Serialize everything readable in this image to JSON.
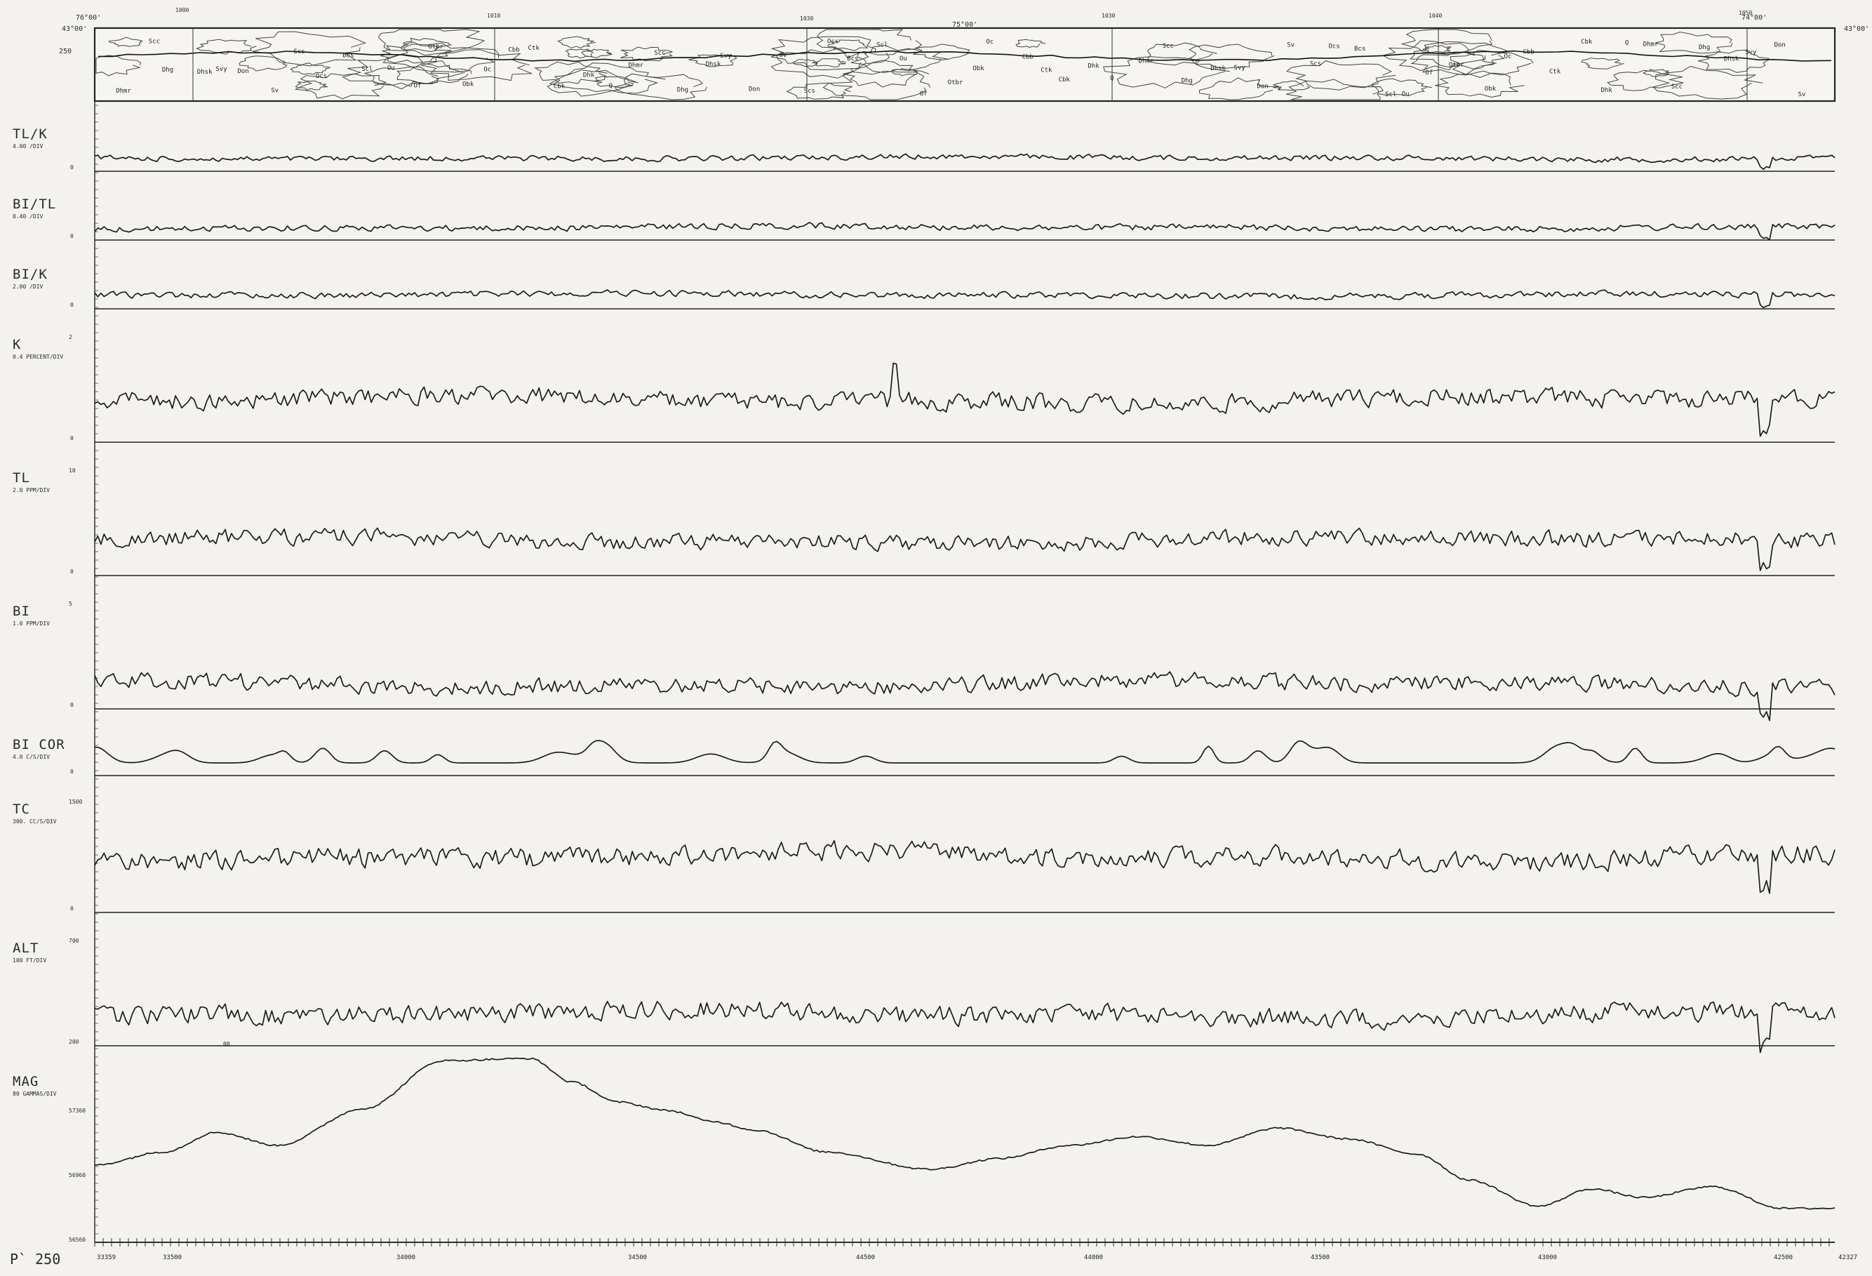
{
  "page_number": "P` 250",
  "header_map": {
    "corners": {
      "top_left_lon": "76°00'",
      "top_left_lat": "43°00'",
      "mid_lon": "75°00'",
      "top_right_lon": "74°00'",
      "top_right_lat": "43°00'",
      "left_alt": "250"
    },
    "fiducials": [
      "1000",
      "1010",
      "1030",
      "1030",
      "1040",
      "1050"
    ],
    "unit_labels": [
      "Dhmr",
      "Scc",
      "Dhg",
      "Dhsk",
      "Svy",
      "Don",
      "Sv",
      "Scs",
      "Ocs",
      "Bcs",
      "Scl",
      "Ou",
      "Of",
      "Otbr",
      "Obk",
      "Oc",
      "Cbb",
      "Ctk",
      "Cbk",
      "Dhk",
      "Q"
    ]
  },
  "chart_data": [
    {
      "type": "line",
      "name": "TL/K",
      "scale": "4.00 /DIV",
      "ticks": {
        "low": "0"
      },
      "profile": "noise",
      "mean": 0.3,
      "amplitude": 0.04
    },
    {
      "type": "line",
      "name": "BI/TL",
      "scale": "0.40 /DIV",
      "ticks": {
        "low": "0"
      },
      "profile": "noise",
      "mean": 0.3,
      "amplitude": 0.06
    },
    {
      "type": "line",
      "name": "BI/K",
      "scale": "2.00 /DIV",
      "ticks": {
        "low": "0"
      },
      "profile": "noise",
      "mean": 0.25,
      "amplitude": 0.05
    },
    {
      "type": "line",
      "name": "K",
      "scale": "0.4 PERCENT/DIV",
      "ticks": {
        "high": "2",
        "low": "0"
      },
      "profile": "noise",
      "mean": 1.45,
      "amplitude": 0.12
    },
    {
      "type": "line",
      "name": "TL",
      "scale": "2.0 PPM/DIV",
      "ticks": {
        "high": "10",
        "low": "0"
      },
      "profile": "noise",
      "mean": 5.5,
      "amplitude": 0.6
    },
    {
      "type": "line",
      "name": "BI",
      "scale": "1.0 PPM/DIV",
      "ticks": {
        "high": "5",
        "low": "0"
      },
      "profile": "noise",
      "mean": 2.4,
      "amplitude": 0.3
    },
    {
      "type": "line",
      "name": "BI COR",
      "scale": "4.0 C/S/DIV",
      "ticks": {
        "low": "0"
      },
      "profile": "bumps",
      "mean": 0.0,
      "amplitude": 2.0
    },
    {
      "type": "line",
      "name": "TC",
      "scale": "300. CC/S/DIV",
      "ticks": {
        "high": "1500",
        "low": "0"
      },
      "profile": "noise",
      "mean": 1000,
      "amplitude": 60
    },
    {
      "type": "line",
      "name": "ALT",
      "scale": "100 FT/DIV",
      "ticks": {
        "high": "700",
        "low": "200"
      },
      "profile": "noise",
      "mean": 420,
      "amplitude": 30
    },
    {
      "type": "line",
      "name": "MAG",
      "scale": "80 GAMMAS/DIV",
      "ticks": {
        "high": "57360",
        "mid": "56960",
        "low": "56560"
      },
      "profile": "points",
      "x": [
        0,
        0.04,
        0.07,
        0.105,
        0.155,
        0.2,
        0.25,
        0.275,
        0.3,
        0.33,
        0.355,
        0.38,
        0.42,
        0.48,
        0.52,
        0.56,
        0.6,
        0.64,
        0.68,
        0.72,
        0.76,
        0.79,
        0.83,
        0.86,
        0.89,
        0.93,
        0.97,
        1.0
      ],
      "y": [
        56900,
        56960,
        57050,
        56990,
        57160,
        57380,
        57390,
        57280,
        57190,
        57150,
        57100,
        57060,
        56960,
        56880,
        56930,
        56990,
        57030,
        56990,
        57070,
        57020,
        56950,
        56830,
        56710,
        56790,
        56750,
        56800,
        56700,
        56700
      ]
    }
  ],
  "x_axis": {
    "fiducial_labels": [
      "33359",
      "33500",
      "34000",
      "34500",
      "44500",
      "44000",
      "43500",
      "43000",
      "42500",
      "42327"
    ],
    "start_marker": "00"
  }
}
